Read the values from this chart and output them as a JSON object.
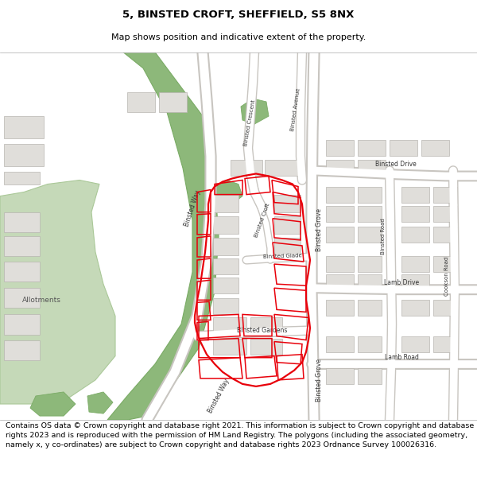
{
  "title": "5, BINSTED CROFT, SHEFFIELD, S5 8NX",
  "subtitle": "Map shows position and indicative extent of the property.",
  "footer": "Contains OS data © Crown copyright and database right 2021. This information is subject to Crown copyright and database rights 2023 and is reproduced with the permission of HM Land Registry. The polygons (including the associated geometry, namely x, y co-ordinates) are subject to Crown copyright and database rights 2023 Ordnance Survey 100026316.",
  "map_bg": "#f2f0ed",
  "building_fill": "#e0deda",
  "building_outline": "#b8b5b0",
  "green_fill": "#8db87a",
  "green_outline": "#7aab65",
  "light_green_fill": "#c5d9b8",
  "light_green_outline": "#aac898",
  "road_color": "#ffffff",
  "road_casing": "#c8c5c0",
  "red_outline": "#e8000a",
  "title_fontsize": 9.5,
  "subtitle_fontsize": 8.0,
  "footer_fontsize": 6.8,
  "label_fontsize": 5.5,
  "label_color": "#333333"
}
